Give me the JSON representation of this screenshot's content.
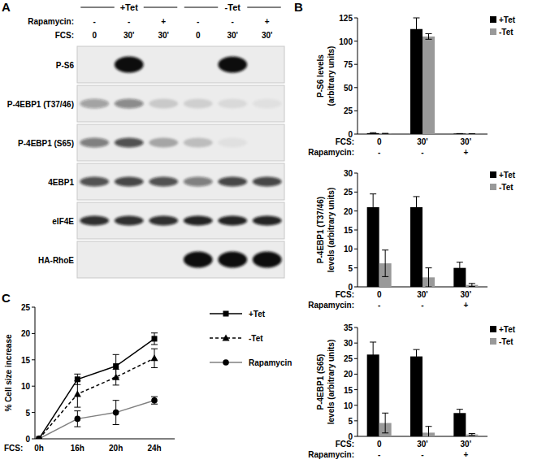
{
  "panels": [
    "A",
    "B",
    "C"
  ],
  "blot": {
    "groups": [
      "+Tet",
      "-Tet"
    ],
    "header_rows": [
      {
        "label": "Rapamycin:",
        "values": [
          "-",
          "-",
          "+",
          "-",
          "-",
          "+"
        ]
      },
      {
        "label": "FCS:",
        "values": [
          "0",
          "30'",
          "30'",
          "0",
          "30'",
          "30'"
        ]
      }
    ],
    "rows": [
      {
        "label": "P-S6",
        "bands": [
          0,
          1,
          0,
          0,
          1,
          0
        ]
      },
      {
        "label": "P-4EBP1 (T37/46)",
        "bands": [
          0.35,
          0.45,
          0.15,
          0.12,
          0.08,
          0.05
        ]
      },
      {
        "label": "P-4EBP1 (S65)",
        "bands": [
          0.5,
          0.7,
          0.3,
          0.2,
          0.05,
          0
        ]
      },
      {
        "label": "4EBP1",
        "bands": [
          0.7,
          0.75,
          0.7,
          0.5,
          0.75,
          0.75
        ]
      },
      {
        "label": "eIF4E",
        "bands": [
          0.85,
          0.85,
          0.85,
          0.9,
          0.9,
          0.9
        ]
      },
      {
        "label": "HA-RhoE",
        "bands": [
          0,
          0,
          0,
          1,
          1,
          1
        ]
      }
    ]
  },
  "chart_data": [
    {
      "type": "bar",
      "y_label": [
        "P-S6 levels",
        "(arbitrary units)"
      ],
      "x_label": "FCS:",
      "categories": [
        "0",
        "30'",
        "30'"
      ],
      "treatment_row": {
        "label": "Rapamycin:",
        "values": [
          "-",
          "-",
          "+"
        ]
      },
      "ylim": [
        0,
        125
      ],
      "yticks": [
        0,
        25,
        50,
        75,
        100,
        125
      ],
      "grid": false,
      "legend": "top-right",
      "series": [
        {
          "name": "+Tet",
          "color": "#000000",
          "values": [
            1,
            113,
            0.5
          ],
          "errors": [
            0.5,
            12,
            0
          ]
        },
        {
          "name": "-Tet",
          "color": "#999999",
          "values": [
            0.5,
            105,
            0.3
          ],
          "errors": [
            0.3,
            3,
            0
          ]
        }
      ]
    },
    {
      "type": "bar",
      "y_label": [
        "P-4EBP1 (T37/46)",
        "levels (arbitrary units)"
      ],
      "x_label": "FCS:",
      "categories": [
        "0",
        "30'",
        "30'"
      ],
      "treatment_row": {
        "label": "Rapamycin:",
        "values": [
          "-",
          "-",
          "+"
        ]
      },
      "ylim": [
        0,
        30
      ],
      "yticks": [
        0,
        5,
        10,
        15,
        20,
        25,
        30
      ],
      "grid": false,
      "legend": "top-right",
      "series": [
        {
          "name": "+Tet",
          "color": "#000000",
          "values": [
            21,
            21,
            5
          ],
          "errors": [
            3.5,
            2.8,
            1.5
          ]
        },
        {
          "name": "-Tet",
          "color": "#999999",
          "values": [
            6.2,
            2.5,
            0.5
          ],
          "errors": [
            3.5,
            2.5,
            0.4
          ]
        }
      ]
    },
    {
      "type": "bar",
      "y_label": [
        "P-4EBP1 (S65)",
        "levels (arbitrary units)"
      ],
      "x_label": "FCS:",
      "categories": [
        "0",
        "30'",
        "30'"
      ],
      "treatment_row": {
        "label": "Rapamycin:",
        "values": [
          "-",
          "-",
          "+"
        ]
      },
      "ylim": [
        0,
        35
      ],
      "yticks": [
        0,
        5,
        10,
        15,
        20,
        25,
        30,
        35
      ],
      "grid": false,
      "legend": "top-right",
      "series": [
        {
          "name": "+Tet",
          "color": "#000000",
          "values": [
            26.3,
            25.7,
            7.5
          ],
          "errors": [
            4,
            2.2,
            1.2
          ]
        },
        {
          "name": "-Tet",
          "color": "#999999",
          "values": [
            4.3,
            1.2,
            0.6
          ],
          "errors": [
            3.2,
            2,
            0.3
          ]
        }
      ]
    },
    {
      "type": "line",
      "y_label": [
        "% Cell size increase"
      ],
      "x_label": "FCS:",
      "categories": [
        "0h",
        "16h",
        "20h",
        "24h"
      ],
      "ylim": [
        0,
        25
      ],
      "yticks": [
        0,
        5,
        10,
        15,
        20,
        25
      ],
      "grid": false,
      "legend": "right",
      "series": [
        {
          "name": "+Tet",
          "color": "#000000",
          "marker": "square",
          "line_style": "solid",
          "values": [
            0,
            11.3,
            13.8,
            19
          ],
          "errors": [
            0,
            1,
            2.2,
            1.1
          ]
        },
        {
          "name": "-Tet",
          "color": "#000000",
          "marker": "triangle",
          "line_style": "dashed",
          "values": [
            0,
            8.5,
            11.7,
            15.3
          ],
          "errors": [
            0,
            2.5,
            1.5,
            1.8
          ]
        },
        {
          "name": "Rapamycin",
          "color": "#808080",
          "marker": "circle",
          "line_style": "solid",
          "values": [
            0,
            3.8,
            5,
            7.3
          ],
          "errors": [
            0,
            1.5,
            2.3,
            0.7
          ]
        }
      ]
    }
  ]
}
